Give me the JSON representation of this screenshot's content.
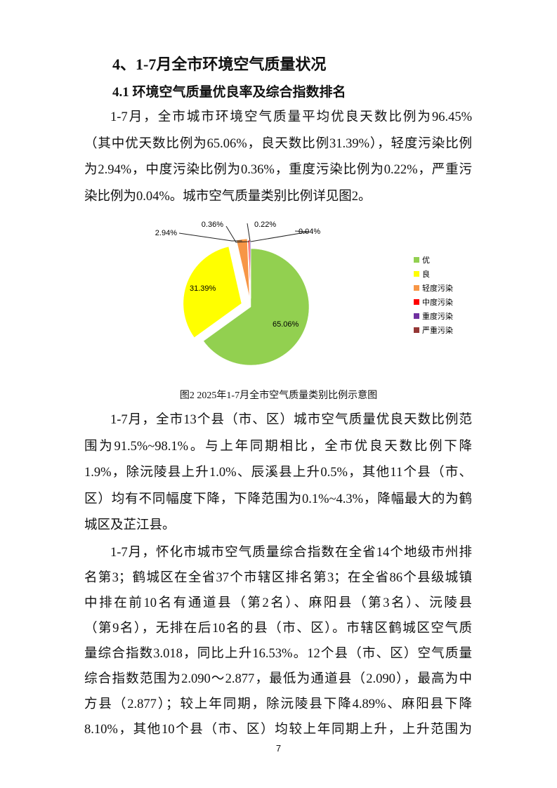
{
  "heading": "4、1-7月全市环境空气质量状况",
  "subheading": "4.1 环境空气质量优良率及综合指数排名",
  "paragraphs": [
    [
      "1-7月，全市城市环境空气质量平均优良天数比例为96.45%",
      "（其中优天数比例为65.06%，良天数比例31.39%），轻度污染比例",
      "为2.94%，中度污染比例为0.36%，重度污染比例为0.22%，严重污",
      "染比例为0.04%。城市空气质量类别比例详见图2。"
    ],
    [
      "1-7月，全市13个县（市、区）城市空气质量优良天数比例范",
      "围为91.5%~98.1%。与上年同期相比，全市优良天数比例下降",
      "1.9%，除沅陵县上升1.0%、辰溪县上升0.5%，其他11个县（市、",
      "区）均有不同幅度下降，下降范围为0.1%~4.3%，降幅最大的为鹤",
      "城区及芷江县。"
    ],
    [
      "1-7月，怀化市城市空气质量综合指数在全省14个地级市州排",
      "名第3；鹤城区在全省37个市辖区排名第3；在全省86个县级城镇",
      "中排在前10名有通道县（第2名）、麻阳县（第3名）、沅陵县",
      "（第9名），无排在后10名的县（市、区）。市辖区鹤城区空气质",
      "量综合指数3.018，同比上升16.53%。12个县（市、区）空气质量",
      "综合指数范围为2.090～2.877，最低为通道县（2.090），最高为中",
      "方县（2.877）；较上年同期，除沅陵县下降4.89%、麻阳县下降",
      "8.10%，其他10个县（市、区）均较上年同期上升，上升范围为"
    ]
  ],
  "figure_caption": "图2  2025年1-7月全市空气质量类别比例示意图",
  "page_number": "7",
  "chart_data": {
    "type": "pie",
    "categories": [
      "优",
      "良",
      "轻度污染",
      "中度污染",
      "重度污染",
      "严重污染"
    ],
    "values": [
      65.06,
      31.39,
      2.94,
      0.36,
      0.22,
      0.04
    ],
    "labels": [
      "65.06%",
      "31.39%",
      "2.94%",
      "0.36%",
      "0.22%",
      "0.04%"
    ],
    "colors": [
      "#92d050",
      "#ffff00",
      "#f79646",
      "#ff0000",
      "#7030a0",
      "#953735"
    ],
    "legend_position": "right",
    "exploded": true
  }
}
